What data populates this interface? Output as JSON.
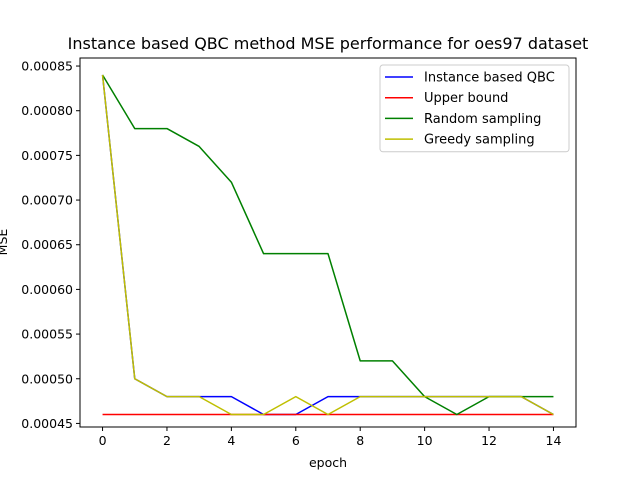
{
  "chart_data": {
    "type": "line",
    "title": "Instance based QBC method MSE performance for oes97 dataset",
    "xlabel": "epoch",
    "ylabel": "MSE",
    "xlim": [
      -0.7,
      14.7
    ],
    "ylim": [
      0.000446,
      0.000859
    ],
    "x_ticks": [
      0,
      2,
      4,
      6,
      8,
      10,
      12,
      14
    ],
    "y_ticks": [
      0.00045,
      0.0005,
      0.00055,
      0.0006,
      0.00065,
      0.0007,
      0.00075,
      0.0008,
      0.00085
    ],
    "y_tick_labels": [
      "0.00045",
      "0.00050",
      "0.00055",
      "0.00060",
      "0.00065",
      "0.00070",
      "0.00075",
      "0.00080",
      "0.00085"
    ],
    "legend_position": "top-right",
    "grid": false,
    "x": [
      0,
      1,
      2,
      3,
      4,
      5,
      6,
      7,
      8,
      9,
      10,
      11,
      12,
      13,
      14
    ],
    "series": [
      {
        "name": "Instance based QBC",
        "color": "#0000ff",
        "values": [
          0.00084,
          0.0005,
          0.00048,
          0.00048,
          0.00048,
          0.00046,
          0.00046,
          0.00048,
          0.00048,
          0.00048,
          0.00048,
          0.00048,
          0.00048,
          0.00048,
          0.00046
        ]
      },
      {
        "name": "Upper bound",
        "color": "#ff0000",
        "values": [
          0.00046,
          0.00046,
          0.00046,
          0.00046,
          0.00046,
          0.00046,
          0.00046,
          0.00046,
          0.00046,
          0.00046,
          0.00046,
          0.00046,
          0.00046,
          0.00046,
          0.00046
        ]
      },
      {
        "name": "Random sampling",
        "color": "#008000",
        "values": [
          0.00084,
          0.00078,
          0.00078,
          0.00076,
          0.00072,
          0.00064,
          0.00064,
          0.00064,
          0.00052,
          0.00052,
          0.00048,
          0.00046,
          0.00048,
          0.00048,
          0.00048
        ]
      },
      {
        "name": "Greedy sampling",
        "color": "#bfbf00",
        "values": [
          0.00084,
          0.0005,
          0.00048,
          0.00048,
          0.00046,
          0.00046,
          0.00048,
          0.00046,
          0.00048,
          0.00048,
          0.00048,
          0.00048,
          0.00048,
          0.00048,
          0.00046
        ]
      }
    ]
  }
}
